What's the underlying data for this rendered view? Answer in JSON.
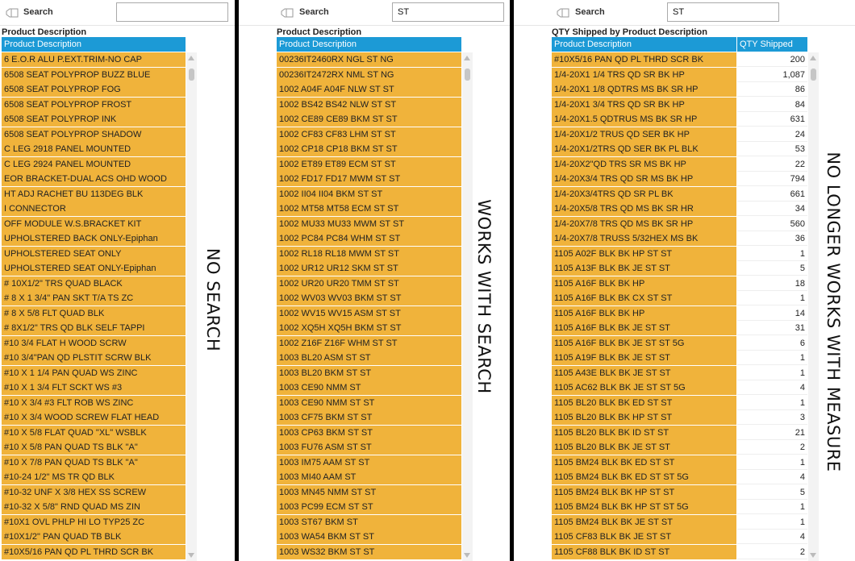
{
  "panels": [
    {
      "search": {
        "label": "Search",
        "value": "",
        "placeholder": ""
      },
      "title": "Product Description",
      "columns": [
        "Product Description"
      ],
      "note": "NO SEARCH",
      "rows": [
        [
          "6 E.O.R ALU P.EXT.TRIM-NO CAP"
        ],
        [
          "6508 SEAT POLYPROP BUZZ BLUE"
        ],
        [
          "6508 SEAT POLYPROP FOG"
        ],
        [
          "6508 SEAT POLYPROP FROST"
        ],
        [
          "6508 SEAT POLYPROP INK"
        ],
        [
          "6508 SEAT POLYPROP SHADOW"
        ],
        [
          "C LEG 2918 PANEL MOUNTED"
        ],
        [
          "C LEG 2924 PANEL MOUNTED"
        ],
        [
          "EOR BRACKET-DUAL ACS OHD WOOD"
        ],
        [
          "HT ADJ RACHET BU 113DEG BLK"
        ],
        [
          "I CONNECTOR"
        ],
        [
          "OFF MODULE W.S.BRACKET KIT"
        ],
        [
          "UPHOLSTERED BACK ONLY-Epiphan"
        ],
        [
          "UPHOLSTERED SEAT ONLY"
        ],
        [
          "UPHOLSTERED SEAT ONLY-Epiphan"
        ],
        [
          "# 10X1/2\" TRS QUAD BLACK"
        ],
        [
          "# 8 X 1 3/4\" PAN SKT T/A TS ZC"
        ],
        [
          "# 8 X 5/8 FLT QUAD BLK"
        ],
        [
          "# 8X1/2\" TRS QD BLK SELF TAPPI"
        ],
        [
          "#10 3/4 FLAT H WOOD SCRW"
        ],
        [
          "#10 3/4\"PAN QD PLSTIT SCRW BLK"
        ],
        [
          "#10 X 1 1/4 PAN QUAD WS ZINC"
        ],
        [
          "#10 X 1 3/4 FLT SCKT WS #3"
        ],
        [
          "#10 X 3/4 #3 FLT ROB WS ZINC"
        ],
        [
          "#10 X 3/4 WOOD SCREW FLAT HEAD"
        ],
        [
          "#10 X 5/8 FLAT QUAD \"XL\" WSBLK"
        ],
        [
          "#10 X 5/8 PAN QUAD TS BLK \"A\""
        ],
        [
          "#10 X 7/8 PAN QUAD TS BLK \"A\""
        ],
        [
          "#10-24 1/2\" MS TR QD BLK"
        ],
        [
          "#10-32 UNF X 3/8 HEX SS SCREW"
        ],
        [
          "#10-32 X 5/8\" RND QUAD MS ZIN"
        ],
        [
          "#10X1 OVL PHLP HI LO TYP25 ZC"
        ],
        [
          "#10X1/2\" PAN QUAD TB BLK"
        ],
        [
          "#10X5/16 PAN QD PL THRD SCR BK"
        ]
      ]
    },
    {
      "search": {
        "label": "Search",
        "value": "ST",
        "placeholder": ""
      },
      "title": "Product Description",
      "columns": [
        "Product Description"
      ],
      "note": "WORKS WITH SEARCH",
      "rows": [
        [
          "00236IT2460RX NGL ST NG"
        ],
        [
          "00236IT2472RX NML ST NG"
        ],
        [
          "1002 A04F A04F NLW ST ST"
        ],
        [
          "1002 BS42 BS42 NLW ST ST"
        ],
        [
          "1002 CE89 CE89 BKM ST ST"
        ],
        [
          "1002 CF83 CF83 LHM ST ST"
        ],
        [
          "1002 CP18 CP18 BKM ST ST"
        ],
        [
          "1002 ET89 ET89 ECM ST ST"
        ],
        [
          "1002 FD17 FD17 MWM ST ST"
        ],
        [
          "1002 II04 II04 BKM ST ST"
        ],
        [
          "1002 MT58 MT58 ECM ST ST"
        ],
        [
          "1002 MU33 MU33 MWM ST ST"
        ],
        [
          "1002 PC84 PC84 WHM ST ST"
        ],
        [
          "1002 RL18 RL18 MWM ST ST"
        ],
        [
          "1002 UR12 UR12 SKM ST ST"
        ],
        [
          "1002 UR20 UR20 TMM ST ST"
        ],
        [
          "1002 WV03 WV03 BKM ST ST"
        ],
        [
          "1002 WV15 WV15 ASM ST ST"
        ],
        [
          "1002 XQ5H XQ5H BKM ST ST"
        ],
        [
          "1002 Z16F Z16F WHM ST ST"
        ],
        [
          "1003 BL20 ASM ST ST"
        ],
        [
          "1003 BL20 BKM ST ST"
        ],
        [
          "1003 CE90 NMM ST"
        ],
        [
          "1003 CE90 NMM ST ST"
        ],
        [
          "1003 CF75 BKM ST ST"
        ],
        [
          "1003 CP63 BKM ST ST"
        ],
        [
          "1003 FU76 ASM ST ST"
        ],
        [
          "1003 IM75 AAM ST ST"
        ],
        [
          "1003 MI40 AAM ST"
        ],
        [
          "1003 MN45 NMM ST ST"
        ],
        [
          "1003 PC99 ECM ST ST"
        ],
        [
          "1003 ST67 BKM ST"
        ],
        [
          "1003 WA54 BKM ST ST"
        ],
        [
          "1003 WS32 BKM ST ST"
        ]
      ]
    },
    {
      "search": {
        "label": "Search",
        "value": "ST",
        "placeholder": ""
      },
      "title": "QTY Shipped by Product Description",
      "columns": [
        "Product Description",
        "QTY Shipped"
      ],
      "note": "NO LONGER WORKS WITH MEASURE",
      "rows": [
        [
          "#10X5/16 PAN QD PL THRD SCR BK",
          "200"
        ],
        [
          "1/4-20X1 1/4 TRS QD SR BK HP",
          "1,087"
        ],
        [
          "1/4-20X1 1/8 QDTRS MS BK SR HP",
          "86"
        ],
        [
          "1/4-20X1 3/4 TRS QD SR BK HP",
          "84"
        ],
        [
          "1/4-20X1.5 QDTRUS MS BK SR HP",
          "631"
        ],
        [
          "1/4-20X1/2 TRUS QD SER BK HP",
          "24"
        ],
        [
          "1/4-20X1/2TRS QD SER BK PL BLK",
          "53"
        ],
        [
          "1/4-20X2\"QD TRS SR MS BK HP",
          "22"
        ],
        [
          "1/4-20X3/4 TRS QD SR MS BK HP",
          "794"
        ],
        [
          "1/4-20X3/4TRS QD SR PL BK",
          "661"
        ],
        [
          "1/4-20X5/8 TRS QD MS BK SR HR",
          "34"
        ],
        [
          "1/4-20X7/8 TRS QD MS BK SR HP",
          "560"
        ],
        [
          "1/4-20X7/8 TRUSS 5/32HEX MS BK",
          "36"
        ],
        [
          "1105 A02F BLK BK HP ST ST",
          "1"
        ],
        [
          "1105 A13F BLK BK JE ST ST",
          "5"
        ],
        [
          "1105 A16F BLK BK HP",
          "18"
        ],
        [
          "1105 A16F BLK BK CX ST ST",
          "1"
        ],
        [
          "1105 A16F BLK BK HP",
          "14"
        ],
        [
          "1105 A16F BLK BK JE ST ST",
          "31"
        ],
        [
          "1105 A16F BLK BK JE ST ST 5G",
          "6"
        ],
        [
          "1105 A19F BLK BK JE ST ST",
          "1"
        ],
        [
          "1105 A43E BLK BK JE ST ST",
          "1"
        ],
        [
          "1105 AC62 BLK BK JE ST ST 5G",
          "4"
        ],
        [
          "1105 BL20 BLK BK ED ST ST",
          "1"
        ],
        [
          "1105 BL20 BLK BK HP ST ST",
          "3"
        ],
        [
          "1105 BL20 BLK BK ID ST ST",
          "21"
        ],
        [
          "1105 BL20 BLK BK JE ST ST",
          "2"
        ],
        [
          "1105 BM24 BLK BK ED ST ST",
          "1"
        ],
        [
          "1105 BM24 BLK BK ED ST ST 5G",
          "4"
        ],
        [
          "1105 BM24 BLK BK HP ST ST",
          "5"
        ],
        [
          "1105 BM24 BLK BK HP ST ST 5G",
          "1"
        ],
        [
          "1105 BM24 BLK BK JE ST ST",
          "1"
        ],
        [
          "1105 CF83 BLK BK JE ST ST",
          "4"
        ],
        [
          "1105 CF88 BLK BK ID ST ST",
          "2"
        ]
      ]
    }
  ],
  "colors": {
    "header": "#1c9ad6",
    "row_fill": "#f0b33b",
    "divider": "#000000"
  },
  "icons": {
    "search": "search-eraser-icon",
    "scroll_up": "scroll-up-arrow-icon",
    "scroll_down": "scroll-down-arrow-icon"
  }
}
